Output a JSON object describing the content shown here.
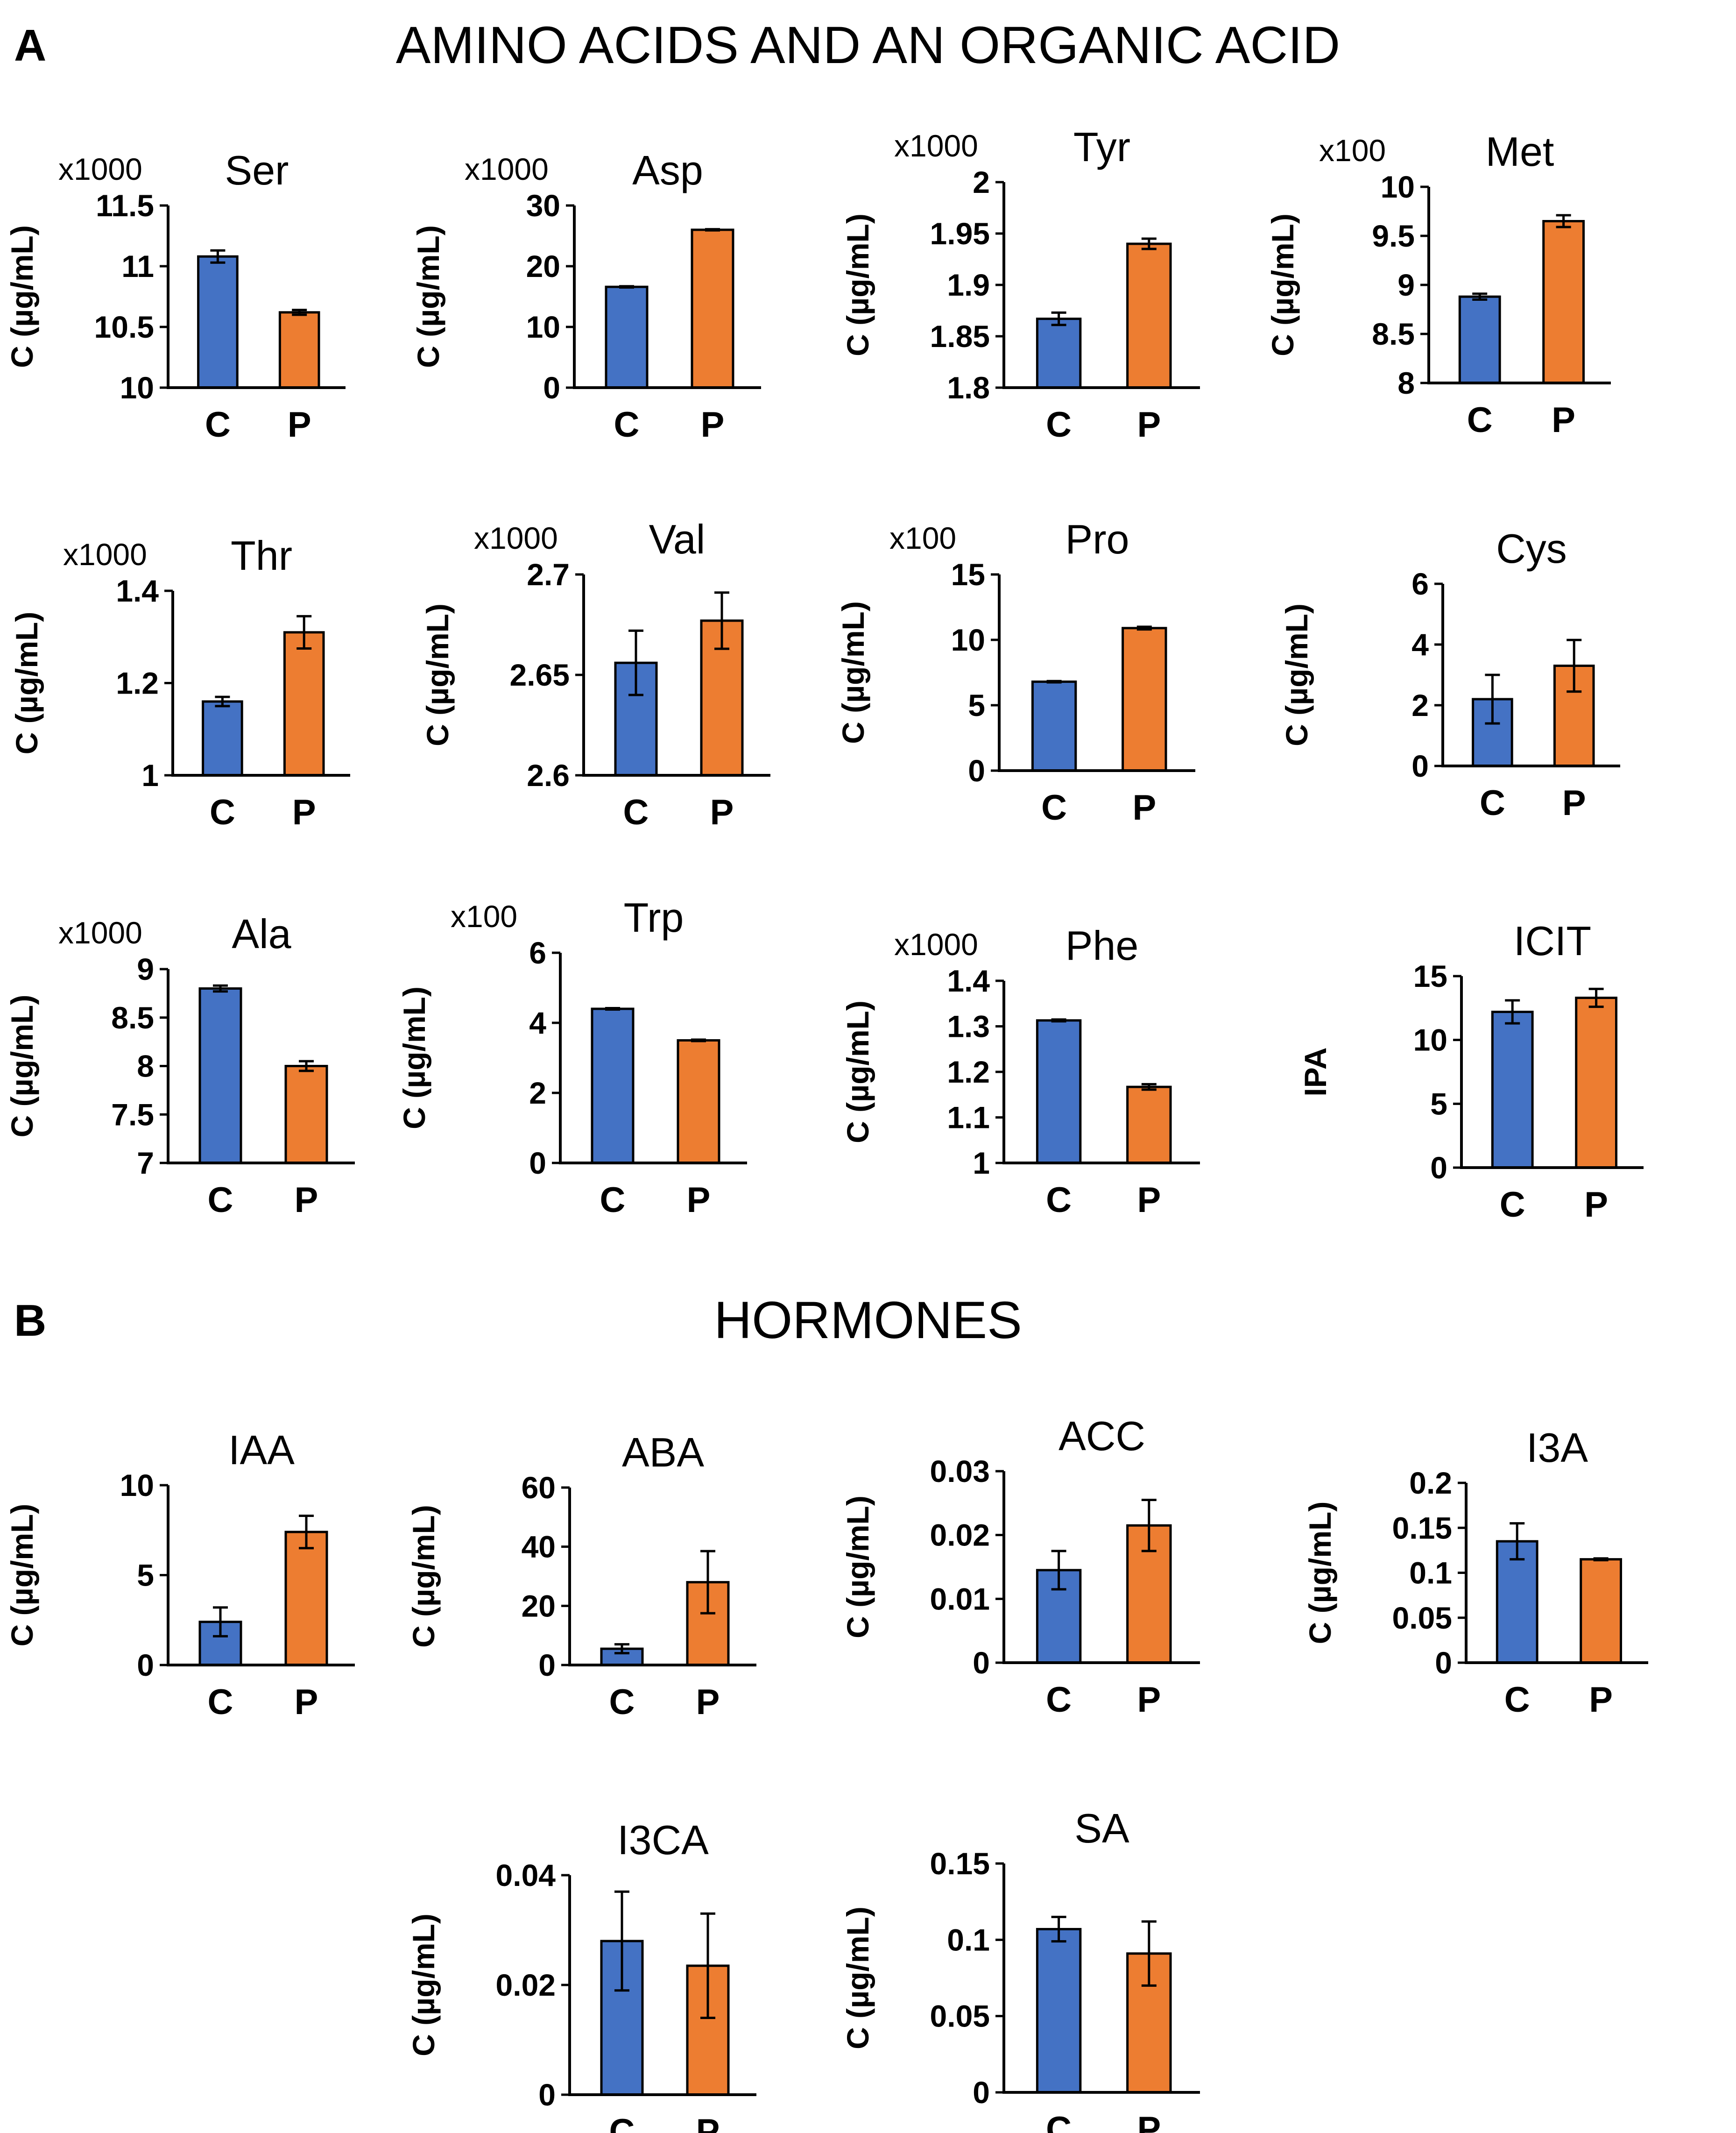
{
  "sections": [
    {
      "letter": "A",
      "title": "AMINO ACIDS AND AN ORGANIC ACID"
    },
    {
      "letter": "B",
      "title": "HORMONES"
    }
  ],
  "colors": {
    "C": "#4472C4",
    "P": "#ED7D31"
  },
  "chart_data": [
    {
      "type": "bar",
      "title": "Ser",
      "section": "A",
      "ylabel": "C (µg/mL)",
      "multiplier": "x1000",
      "categories": [
        "C",
        "P"
      ],
      "values": [
        11.08,
        10.62
      ],
      "errors": [
        0.05,
        0.02
      ],
      "ylim": [
        10,
        11.5
      ],
      "ticks": [
        10,
        10.5,
        11,
        11.5
      ],
      "tick_labels": [
        "10",
        "10.5",
        "11",
        "11.5"
      ]
    },
    {
      "type": "bar",
      "title": "Asp",
      "section": "A",
      "ylabel": "C (µg/mL)",
      "multiplier": "x1000",
      "categories": [
        "C",
        "P"
      ],
      "values": [
        16.6,
        26
      ],
      "errors": [
        0.1,
        0.1
      ],
      "ylim": [
        0,
        30
      ],
      "ticks": [
        0,
        10,
        20,
        30
      ],
      "tick_labels": [
        "0",
        "10",
        "20",
        "30"
      ]
    },
    {
      "type": "bar",
      "title": "Tyr",
      "section": "A",
      "ylabel": "C (µg/mL)",
      "multiplier": "x1000",
      "categories": [
        "C",
        "P"
      ],
      "values": [
        1.867,
        1.94
      ],
      "errors": [
        0.006,
        0.005
      ],
      "ylim": [
        1.8,
        2
      ],
      "ticks": [
        1.8,
        1.85,
        1.9,
        1.95,
        2
      ],
      "tick_labels": [
        "1.8",
        "1.85",
        "1.9",
        "1.95",
        "2"
      ]
    },
    {
      "type": "bar",
      "title": "Met",
      "section": "A",
      "ylabel": "C (µg/mL)",
      "multiplier": "x100",
      "categories": [
        "C",
        "P"
      ],
      "values": [
        8.88,
        9.65
      ],
      "errors": [
        0.03,
        0.06
      ],
      "ylim": [
        8,
        10
      ],
      "ticks": [
        8,
        8.5,
        9,
        9.5,
        10
      ],
      "tick_labels": [
        "8",
        "8.5",
        "9",
        "9.5",
        "10"
      ]
    },
    {
      "type": "bar",
      "title": "Thr",
      "section": "A",
      "ylabel": "C (µg/mL)",
      "multiplier": "x1000",
      "categories": [
        "C",
        "P"
      ],
      "values": [
        1.16,
        1.31
      ],
      "errors": [
        0.01,
        0.035
      ],
      "ylim": [
        1,
        1.4
      ],
      "ticks": [
        1,
        1.2,
        1.4
      ],
      "tick_labels": [
        "1",
        "1.2",
        "1.4"
      ]
    },
    {
      "type": "bar",
      "title": "Val",
      "section": "A",
      "ylabel": "C (µg/mL)",
      "multiplier": "x1000",
      "categories": [
        "C",
        "P"
      ],
      "values": [
        2.656,
        2.677
      ],
      "errors": [
        0.016,
        0.014
      ],
      "ylim": [
        2.6,
        2.7
      ],
      "ticks": [
        2.6,
        2.65,
        2.7
      ],
      "tick_labels": [
        "2.6",
        "2.65",
        "2.7"
      ]
    },
    {
      "type": "bar",
      "title": "Pro",
      "section": "A",
      "ylabel": "C (µg/mL)",
      "multiplier": "x100",
      "categories": [
        "C",
        "P"
      ],
      "values": [
        6.8,
        10.9
      ],
      "errors": [
        0.05,
        0.1
      ],
      "ylim": [
        0,
        15
      ],
      "ticks": [
        0,
        5,
        10,
        15
      ],
      "tick_labels": [
        "0",
        "5",
        "10",
        "15"
      ]
    },
    {
      "type": "bar",
      "title": "Cys",
      "section": "A",
      "ylabel": "C (µg/mL)",
      "multiplier": "",
      "categories": [
        "C",
        "P"
      ],
      "values": [
        2.2,
        3.3
      ],
      "errors": [
        0.8,
        0.85
      ],
      "ylim": [
        0,
        6
      ],
      "ticks": [
        0,
        2,
        4,
        6
      ],
      "tick_labels": [
        "0",
        "2",
        "4",
        "6"
      ]
    },
    {
      "type": "bar",
      "title": "Ala",
      "section": "A",
      "ylabel": "C (µg/mL)",
      "multiplier": "x1000",
      "categories": [
        "C",
        "P"
      ],
      "values": [
        8.8,
        8.0
      ],
      "errors": [
        0.03,
        0.05
      ],
      "ylim": [
        7,
        9
      ],
      "ticks": [
        7,
        7.5,
        8,
        8.5,
        9
      ],
      "tick_labels": [
        "7",
        "7.5",
        "8",
        "8.5",
        "9"
      ]
    },
    {
      "type": "bar",
      "title": "Trp",
      "section": "A",
      "ylabel": "C (µg/mL)",
      "multiplier": "x100",
      "categories": [
        "C",
        "P"
      ],
      "values": [
        4.4,
        3.5
      ],
      "errors": [
        0.02,
        0.02
      ],
      "ylim": [
        0,
        6
      ],
      "ticks": [
        0,
        2,
        4,
        6
      ],
      "tick_labels": [
        "0",
        "2",
        "4",
        "6"
      ]
    },
    {
      "type": "bar",
      "title": "Phe",
      "section": "A",
      "ylabel": "C (µg/mL)",
      "multiplier": "x1000",
      "categories": [
        "C",
        "P"
      ],
      "values": [
        1.313,
        1.167
      ],
      "errors": [
        0.002,
        0.006
      ],
      "ylim": [
        1,
        1.4
      ],
      "ticks": [
        1,
        1.1,
        1.2,
        1.3,
        1.4
      ],
      "tick_labels": [
        "1",
        "1.1",
        "1.2",
        "1.3",
        "1.4"
      ]
    },
    {
      "type": "bar",
      "title": "ICIT",
      "section": "A",
      "ylabel": "IPA",
      "multiplier": "",
      "categories": [
        "C",
        "P"
      ],
      "values": [
        12.2,
        13.3
      ],
      "errors": [
        0.9,
        0.7
      ],
      "ylim": [
        0,
        15
      ],
      "ticks": [
        0,
        5,
        10,
        15
      ],
      "tick_labels": [
        "0",
        "5",
        "10",
        "15"
      ]
    },
    {
      "type": "bar",
      "title": "IAA",
      "section": "B",
      "ylabel": "C (µg/mL)",
      "multiplier": "",
      "categories": [
        "C",
        "P"
      ],
      "values": [
        2.4,
        7.4
      ],
      "errors": [
        0.8,
        0.9
      ],
      "ylim": [
        0,
        10
      ],
      "ticks": [
        0,
        5,
        10
      ],
      "tick_labels": [
        "0",
        "5",
        "10"
      ]
    },
    {
      "type": "bar",
      "title": "ABA",
      "section": "B",
      "ylabel": "C (µg/mL)",
      "multiplier": "",
      "categories": [
        "C",
        "P"
      ],
      "values": [
        5.5,
        28
      ],
      "errors": [
        1.5,
        10.5
      ],
      "ylim": [
        0,
        60
      ],
      "ticks": [
        0,
        20,
        40,
        60
      ],
      "tick_labels": [
        "0",
        "20",
        "40",
        "60"
      ]
    },
    {
      "type": "bar",
      "title": "ACC",
      "section": "B",
      "ylabel": "C (µg/mL)",
      "multiplier": "",
      "categories": [
        "C",
        "P"
      ],
      "values": [
        0.0145,
        0.0215
      ],
      "errors": [
        0.003,
        0.004
      ],
      "ylim": [
        0,
        0.03
      ],
      "ticks": [
        0,
        0.01,
        0.02,
        0.03
      ],
      "tick_labels": [
        "0",
        "0.01",
        "0.02",
        "0.03"
      ]
    },
    {
      "type": "bar",
      "title": "I3A",
      "section": "B",
      "ylabel": "C (µg/mL)",
      "multiplier": "",
      "categories": [
        "C",
        "P"
      ],
      "values": [
        0.135,
        0.115
      ],
      "errors": [
        0.02,
        0.001
      ],
      "ylim": [
        0,
        0.2
      ],
      "ticks": [
        0,
        0.05,
        0.1,
        0.15,
        0.2
      ],
      "tick_labels": [
        "0",
        "0.05",
        "0.1",
        "0.15",
        "0.2"
      ]
    },
    {
      "type": "bar",
      "title": "I3CA",
      "section": "B",
      "ylabel": "C (µg/mL)",
      "multiplier": "",
      "categories": [
        "C",
        "P"
      ],
      "values": [
        0.028,
        0.0235
      ],
      "errors": [
        0.009,
        0.0095
      ],
      "ylim": [
        0,
        0.04
      ],
      "ticks": [
        0,
        0.02,
        0.04
      ],
      "tick_labels": [
        "0",
        "0.02",
        "0.04"
      ]
    },
    {
      "type": "bar",
      "title": "SA",
      "section": "B",
      "ylabel": "C (µg/mL)",
      "multiplier": "",
      "categories": [
        "C",
        "P"
      ],
      "values": [
        0.107,
        0.091
      ],
      "errors": [
        0.008,
        0.021
      ],
      "ylim": [
        0,
        0.15
      ],
      "ticks": [
        0,
        0.05,
        0.1,
        0.15
      ],
      "tick_labels": [
        "0",
        "0.05",
        "0.1",
        "0.15"
      ]
    }
  ]
}
